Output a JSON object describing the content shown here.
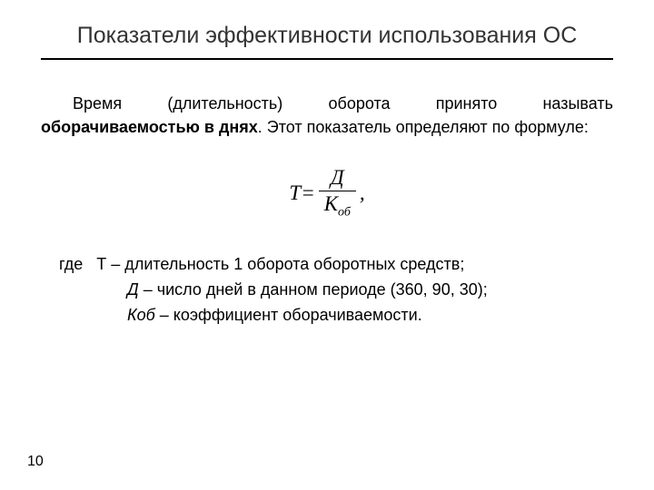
{
  "title": "Показатели эффективности использования ОС",
  "paragraph": {
    "part1": "Время",
    "part2": "(длительность)",
    "part3": "оборота",
    "part4": "принято",
    "part5": "называть",
    "bold1": "оборачиваемостью в днях",
    "part6": ". Этот показатель определяют по формуле:"
  },
  "formula": {
    "lhs": "Т",
    "eq": " = ",
    "numerator": "Д",
    "denom_main": "К",
    "denom_sub": "об",
    "comma": ","
  },
  "defs": {
    "where": "где",
    "d1_sym": "Т",
    "d1_text": " – длительность 1 оборота оборотных средств;",
    "d2_sym": "Д",
    "d2_text": "  – число дней в данном периоде (360, 90, 30);",
    "d3_sym": "Коб",
    "d3_text": " – коэффициент оборачиваемости."
  },
  "page_number": "10"
}
